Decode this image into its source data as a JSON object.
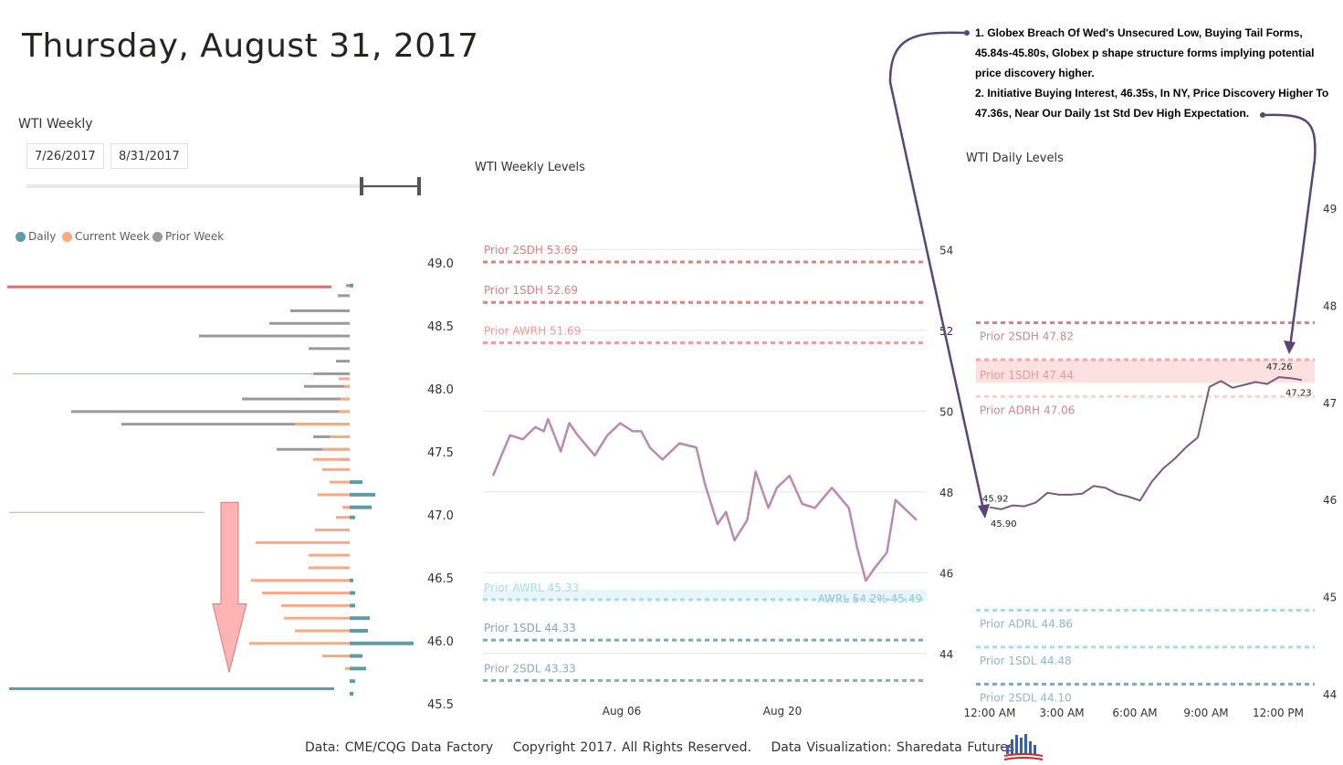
{
  "title": "Thursday, August 31, 2017",
  "slicer": {
    "title": "WTI Weekly",
    "start_date": "7/26/2017",
    "end_date": "8/31/2017"
  },
  "legend": [
    {
      "label": "Daily",
      "color": "#5e9ca8"
    },
    {
      "label": "Current Week",
      "color": "#fba983"
    },
    {
      "label": "Prior Week",
      "color": "#9a9a9a"
    }
  ],
  "annotation": {
    "line1": "1. Globex Breach Of Wed's Unsecured Low, Buying Tail Forms, 45.84s-45.80s, Globex p shape structure forms implying potential price discovery higher.",
    "line2": "2. Initiative Buying Interest, 46.35s, In NY, Price Discovery Higher To 47.36s, Near Our Daily 1st Std Dev High Expectation."
  },
  "footer": {
    "data_source": "Data: CME/CQG Data Factory",
    "copyright": "Copyright 2017. All Rights Reserved.",
    "credit": "Data Visualization: Sharedata Futures"
  },
  "colors": {
    "daily": "#5e9ca8",
    "current": "#fba983",
    "prior": "#9a9a9a",
    "price_line": "#b88bb0",
    "daily_line": "#7a5a80",
    "red_bar": "#e8696d",
    "arrow": "#ffb3b3",
    "annot_arrow": "#5b4577"
  },
  "chart_data": [
    {
      "type": "bar",
      "orientation": "horizontal",
      "name": "volume-profile",
      "y_ticks": [
        "49.0",
        "48.5",
        "48.0",
        "47.5",
        "47.0",
        "46.5",
        "46.0",
        "45.5"
      ],
      "ylim": [
        45.5,
        49.0
      ],
      "series": [
        {
          "name": "Prior Week",
          "points": [
            [
              48.82,
              4
            ],
            [
              48.74,
              13
            ],
            [
              48.62,
              65
            ],
            [
              48.52,
              88
            ],
            [
              48.42,
              165
            ],
            [
              48.32,
              45
            ],
            [
              48.22,
              15
            ],
            [
              48.12,
              40
            ],
            [
              48.02,
              50
            ],
            [
              47.92,
              118
            ],
            [
              47.82,
              305
            ],
            [
              47.72,
              250
            ],
            [
              47.62,
              40
            ],
            [
              47.52,
              80
            ],
            [
              47.44,
              10
            ]
          ]
        },
        {
          "name": "Current Week",
          "points": [
            [
              48.08,
              12
            ],
            [
              48.02,
              6
            ],
            [
              47.92,
              10
            ],
            [
              47.82,
              12
            ],
            [
              47.72,
              60
            ],
            [
              47.62,
              22
            ],
            [
              47.52,
              30
            ],
            [
              47.44,
              40
            ],
            [
              47.36,
              30
            ],
            [
              47.26,
              22
            ],
            [
              47.16,
              35
            ],
            [
              47.06,
              8
            ],
            [
              46.98,
              15
            ],
            [
              46.88,
              38
            ],
            [
              46.78,
              103
            ],
            [
              46.68,
              45
            ],
            [
              46.58,
              45
            ],
            [
              46.48,
              108
            ],
            [
              46.38,
              96
            ],
            [
              46.28,
              75
            ],
            [
              46.18,
              72
            ],
            [
              46.08,
              60
            ],
            [
              45.98,
              110
            ],
            [
              45.88,
              30
            ],
            [
              45.78,
              5
            ]
          ]
        },
        {
          "name": "Daily",
          "points": [
            [
              48.82,
              4
            ],
            [
              47.26,
              14
            ],
            [
              47.16,
              28
            ],
            [
              47.06,
              24
            ],
            [
              46.98,
              6
            ],
            [
              46.48,
              4
            ],
            [
              46.38,
              6
            ],
            [
              46.28,
              6
            ],
            [
              46.18,
              22
            ],
            [
              46.08,
              20
            ],
            [
              45.98,
              70
            ],
            [
              45.88,
              14
            ],
            [
              45.78,
              18
            ],
            [
              45.68,
              6
            ],
            [
              45.58,
              4
            ]
          ]
        }
      ],
      "extras": {
        "red_line_price": 48.81,
        "thin_lines": [
          48.12,
          47.02
        ],
        "teal_line_price": 45.62,
        "arrow": {
          "from": 47.1,
          "to": 45.75
        }
      }
    },
    {
      "type": "line",
      "title": "WTI Weekly Levels",
      "x_ticks": [
        "Aug 06",
        "Aug 20"
      ],
      "y_ticks": [
        "54",
        "52",
        "50",
        "48",
        "46",
        "44"
      ],
      "ylim": [
        43.0,
        55.0
      ],
      "levels": [
        {
          "label": "Prior 2SDH 53.69",
          "value": 53.69,
          "color": "#e07f80"
        },
        {
          "label": "Prior 1SDH 52.69",
          "value": 52.69,
          "color": "#e07f80"
        },
        {
          "label": "Prior AWRH 51.69",
          "value": 51.69,
          "color": "#f39a9a"
        },
        {
          "label": "Prior AWRL 45.33",
          "value": 45.33,
          "color": "#a6dce8"
        },
        {
          "label": "Prior 1SDL 44.33",
          "value": 44.33,
          "color": "#7ba8c2"
        },
        {
          "label": "Prior 2SDL 43.33",
          "value": 43.33,
          "color": "#8fa8c0"
        }
      ],
      "awrl_band": {
        "label": "AWRL 54.2% 45.49",
        "from": 45.33,
        "to": 45.49
      },
      "series": [
        {
          "points": [
            [
              0,
              48.4
            ],
            [
              0.02,
              48.9
            ],
            [
              0.04,
              49.4
            ],
            [
              0.07,
              49.3
            ],
            [
              0.1,
              49.6
            ],
            [
              0.12,
              49.5
            ],
            [
              0.13,
              49.8
            ],
            [
              0.16,
              49.0
            ],
            [
              0.18,
              49.7
            ],
            [
              0.2,
              49.4
            ],
            [
              0.24,
              48.9
            ],
            [
              0.27,
              49.4
            ],
            [
              0.3,
              49.7
            ],
            [
              0.33,
              49.5
            ],
            [
              0.35,
              49.5
            ],
            [
              0.37,
              49.1
            ],
            [
              0.4,
              48.8
            ],
            [
              0.44,
              49.2
            ],
            [
              0.48,
              49.1
            ],
            [
              0.5,
              48.2
            ],
            [
              0.53,
              47.2
            ],
            [
              0.55,
              47.5
            ],
            [
              0.57,
              46.8
            ],
            [
              0.6,
              47.3
            ],
            [
              0.62,
              48.5
            ],
            [
              0.65,
              47.6
            ],
            [
              0.67,
              48.1
            ],
            [
              0.7,
              48.4
            ],
            [
              0.73,
              47.7
            ],
            [
              0.76,
              47.6
            ],
            [
              0.8,
              48.1
            ],
            [
              0.84,
              47.6
            ],
            [
              0.86,
              46.6
            ],
            [
              0.88,
              45.8
            ],
            [
              0.9,
              46.1
            ],
            [
              0.93,
              46.5
            ],
            [
              0.95,
              47.8
            ],
            [
              1.0,
              47.3
            ]
          ]
        }
      ]
    },
    {
      "type": "line",
      "title": "WTI Daily Levels",
      "x_ticks": [
        "12:00 AM",
        "3:00 AM",
        "6:00 AM",
        "9:00 AM",
        "12:00 PM"
      ],
      "y_ticks": [
        "49",
        "48",
        "47",
        "46",
        "45",
        "44"
      ],
      "ylim": [
        44.0,
        49.0
      ],
      "levels": [
        {
          "label": "Prior 2SDH 47.82",
          "value": 47.82,
          "color": "#c98a8e"
        },
        {
          "label": "Prior 1SDH 47.44",
          "value": 47.44,
          "color": "#f0a9ad"
        },
        {
          "label": "Prior ADRH 47.06",
          "value": 47.06,
          "color": "#f8d3d5"
        },
        {
          "label": "Prior ADRL 44.86",
          "value": 44.86,
          "color": "#a6dce8"
        },
        {
          "label": "Prior 1SDL 44.48",
          "value": 44.48,
          "color": "#a6dce8"
        },
        {
          "label": "Prior 2SDL 44.10",
          "value": 44.1,
          "color": "#7ba8c2"
        }
      ],
      "band": {
        "from": 47.2,
        "to": 47.44
      },
      "point_labels": [
        "45.92",
        "45.90",
        "47.26",
        "47.23"
      ],
      "series": [
        {
          "points": [
            [
              0.0,
              45.92
            ],
            [
              0.5,
              45.9
            ],
            [
              1.0,
              45.94
            ],
            [
              1.5,
              45.93
            ],
            [
              2.0,
              45.97
            ],
            [
              2.5,
              46.07
            ],
            [
              3.0,
              46.05
            ],
            [
              3.5,
              46.05
            ],
            [
              4.0,
              46.06
            ],
            [
              4.5,
              46.14
            ],
            [
              5.0,
              46.12
            ],
            [
              5.5,
              46.06
            ],
            [
              6.0,
              46.03
            ],
            [
              6.5,
              45.99
            ],
            [
              7.0,
              46.18
            ],
            [
              7.5,
              46.32
            ],
            [
              8.0,
              46.42
            ],
            [
              8.5,
              46.54
            ],
            [
              9.0,
              46.64
            ],
            [
              9.5,
              47.16
            ],
            [
              10.0,
              47.22
            ],
            [
              10.5,
              47.15
            ],
            [
              11.0,
              47.18
            ],
            [
              11.5,
              47.21
            ],
            [
              12.0,
              47.19
            ],
            [
              12.5,
              47.26
            ],
            [
              13.0,
              47.25
            ],
            [
              13.5,
              47.23
            ]
          ]
        }
      ]
    }
  ]
}
